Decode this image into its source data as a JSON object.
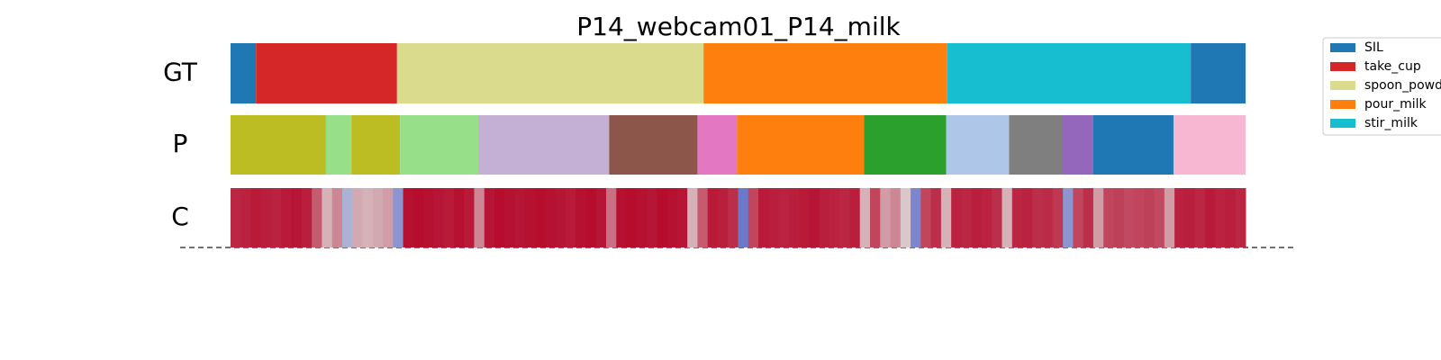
{
  "chart_data": {
    "type": "segmentation",
    "title": "P14_webcam01_P14_milk",
    "row_labels": [
      "GT",
      "P",
      "C"
    ],
    "xlim": [
      0,
      100
    ],
    "classes": [
      {
        "name": "SIL",
        "color": "#1f77b4"
      },
      {
        "name": "take_cup",
        "color": "#d62728"
      },
      {
        "name": "spoon_powd",
        "color": "#dbdb8d"
      },
      {
        "name": "pour_milk",
        "color": "#ff7f0e"
      },
      {
        "name": "stir_milk",
        "color": "#17becf"
      }
    ],
    "gt": [
      {
        "class": 0,
        "start": 0,
        "end": 2.5
      },
      {
        "class": 1,
        "start": 2.5,
        "end": 16.4
      },
      {
        "class": 2,
        "start": 16.4,
        "end": 46.6
      },
      {
        "class": 3,
        "start": 46.6,
        "end": 70.6
      },
      {
        "class": 4,
        "start": 70.6,
        "end": 94.6
      },
      {
        "class": 0,
        "start": 94.6,
        "end": 100
      }
    ],
    "pred": [
      {
        "color": "#bcbd22",
        "start": 0,
        "end": 9.4
      },
      {
        "color": "#98df8a",
        "start": 9.4,
        "end": 11.9
      },
      {
        "color": "#bcbd22",
        "start": 11.9,
        "end": 16.7
      },
      {
        "color": "#98df8a",
        "start": 16.7,
        "end": 24.4
      },
      {
        "color": "#c5b0d5",
        "start": 24.4,
        "end": 37.3
      },
      {
        "color": "#8c564b",
        "start": 37.3,
        "end": 46.0
      },
      {
        "color": "#e377c2",
        "start": 46.0,
        "end": 49.9
      },
      {
        "color": "#ff7f0e",
        "start": 49.9,
        "end": 62.4
      },
      {
        "color": "#2ca02c",
        "start": 62.4,
        "end": 70.5
      },
      {
        "color": "#aec7e8",
        "start": 70.5,
        "end": 76.7
      },
      {
        "color": "#7f7f7f",
        "start": 76.7,
        "end": 81.9
      },
      {
        "color": "#9467bd",
        "start": 81.9,
        "end": 85.0
      },
      {
        "color": "#1f77b4",
        "start": 85.0,
        "end": 92.9
      },
      {
        "color": "#f7b6d2",
        "start": 92.9,
        "end": 100
      }
    ],
    "confidence": [
      0.92,
      0.93,
      0.95,
      0.94,
      0.93,
      0.95,
      0.96,
      0.94,
      0.8,
      0.6,
      0.7,
      0.35,
      0.62,
      0.6,
      0.62,
      0.65,
      0.25,
      0.97,
      0.98,
      0.97,
      0.96,
      0.95,
      0.97,
      0.95,
      0.7,
      0.96,
      0.98,
      0.97,
      0.96,
      0.97,
      0.98,
      0.97,
      0.96,
      0.95,
      0.97,
      0.98,
      0.96,
      0.75,
      0.97,
      0.98,
      0.97,
      0.96,
      0.98,
      0.97,
      0.96,
      0.6,
      0.8,
      0.95,
      0.94,
      0.9,
      0.15,
      0.85,
      0.95,
      0.94,
      0.93,
      0.94,
      0.95,
      0.96,
      0.94,
      0.93,
      0.92,
      0.94,
      0.6,
      0.85,
      0.65,
      0.7,
      0.55,
      0.2,
      0.85,
      0.9,
      0.6,
      0.93,
      0.92,
      0.94,
      0.93,
      0.9,
      0.6,
      0.92,
      0.93,
      0.9,
      0.91,
      0.88,
      0.25,
      0.85,
      0.9,
      0.65,
      0.85,
      0.86,
      0.84,
      0.85,
      0.86,
      0.84,
      0.65,
      0.93,
      0.94,
      0.92,
      0.95,
      0.93,
      0.94,
      0.92
    ]
  }
}
